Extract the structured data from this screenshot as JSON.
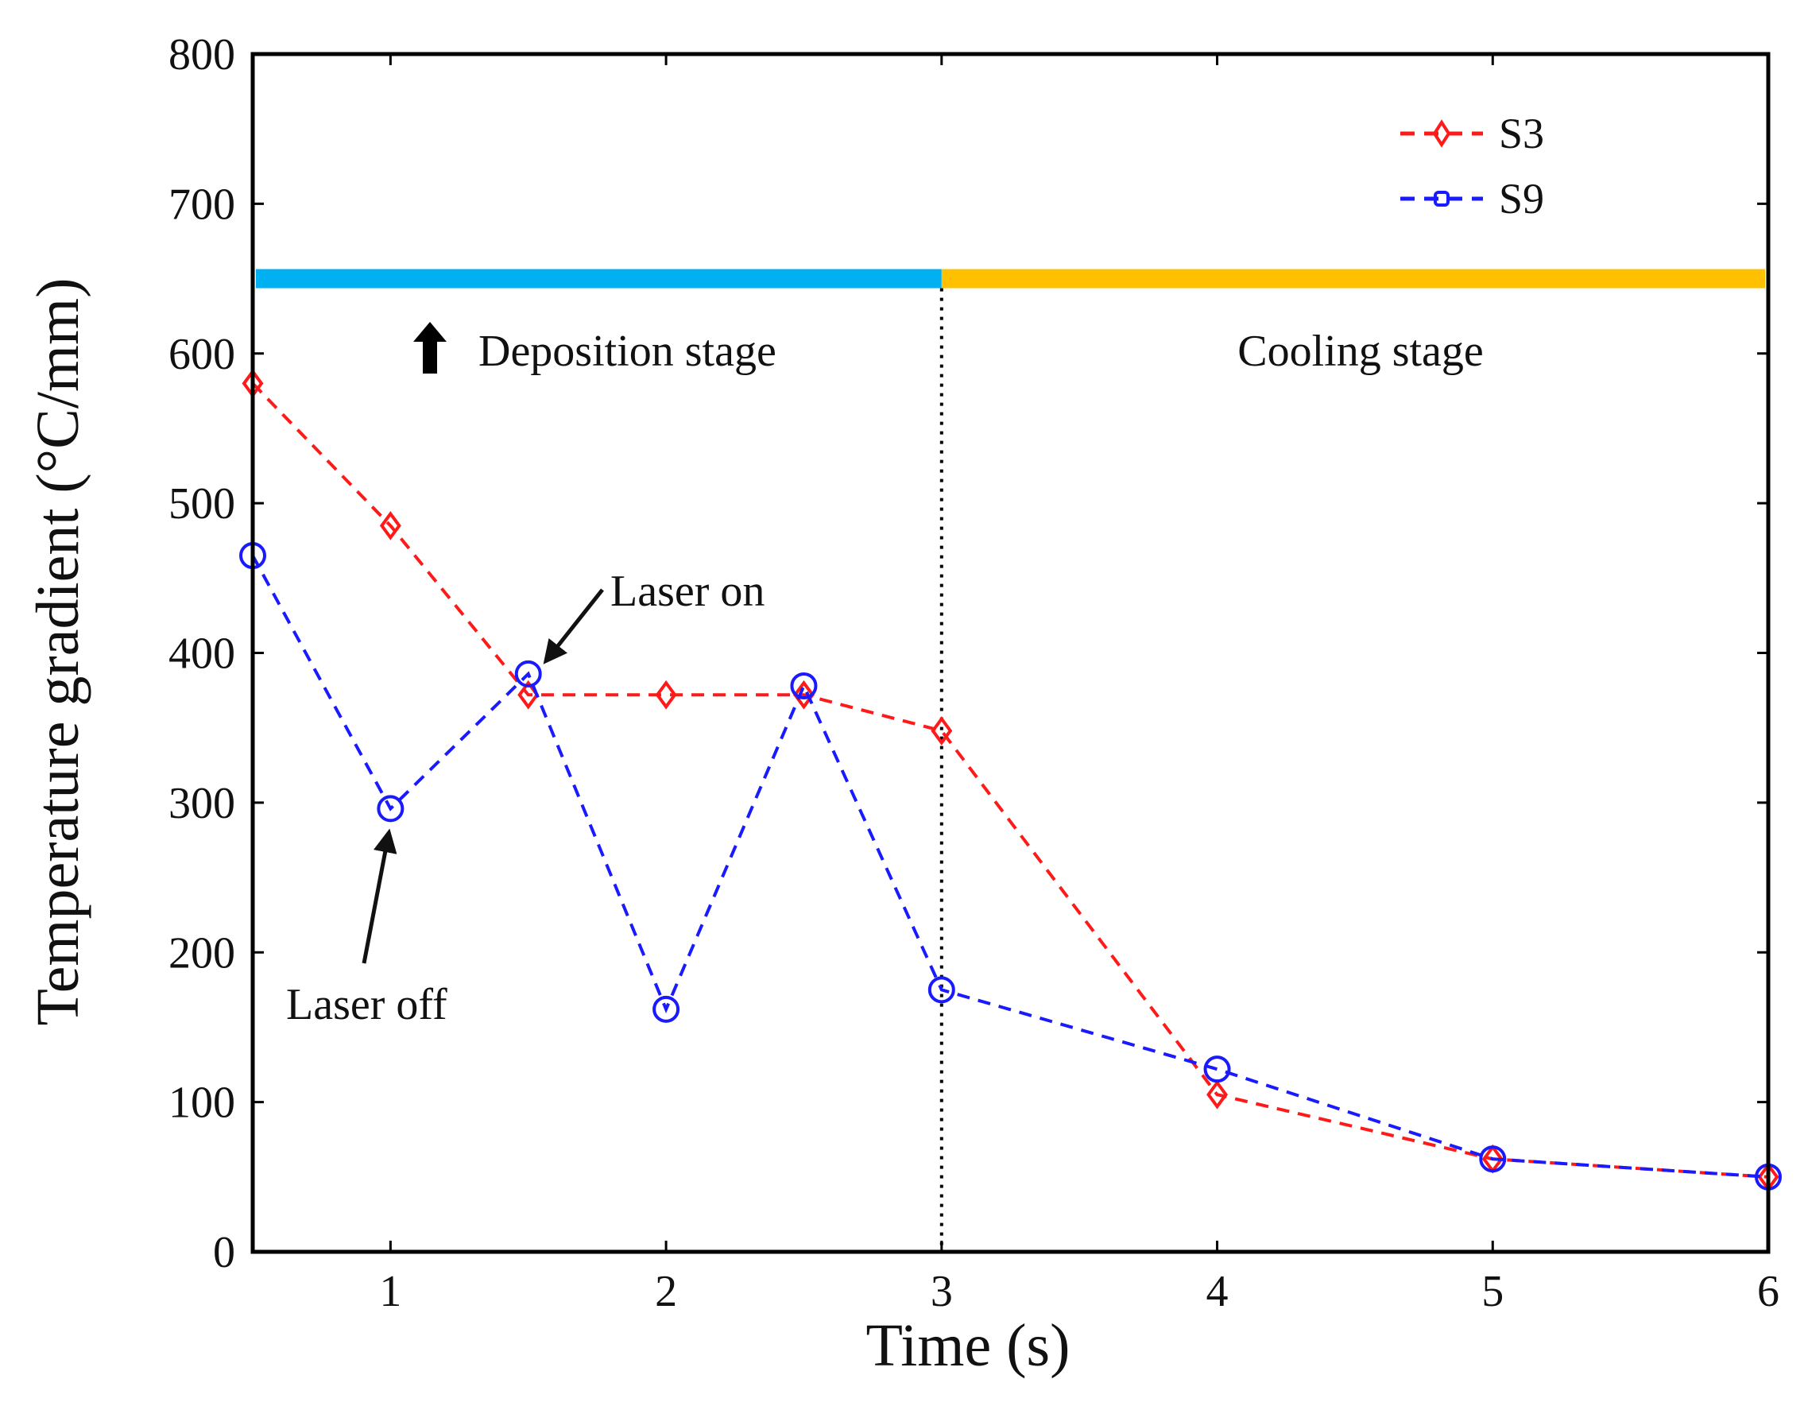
{
  "chart_data": {
    "type": "line",
    "xlabel": "Time (s)",
    "ylabel": "Temperature gradient (°C/mm)",
    "xlim": [
      0.5,
      6
    ],
    "ylim": [
      0,
      800
    ],
    "xticks": [
      1,
      2,
      3,
      4,
      5,
      6
    ],
    "yticks": [
      0,
      100,
      200,
      300,
      400,
      500,
      600,
      700,
      800
    ],
    "grid": false,
    "legend_position": "top-right",
    "series": [
      {
        "name": "S3",
        "color": "#ff1a1a",
        "marker": "diamond",
        "line_style": "dashed",
        "x": [
          0.5,
          1,
          1.5,
          2,
          2.5,
          3,
          4,
          5,
          6
        ],
        "y": [
          580,
          485,
          372,
          372,
          372,
          348,
          105,
          62,
          50
        ]
      },
      {
        "name": "S9",
        "color": "#1a1aff",
        "marker": "circle",
        "line_style": "dashed",
        "x": [
          0.5,
          1,
          1.5,
          2,
          2.5,
          3,
          4,
          5,
          6
        ],
        "y": [
          465,
          296,
          386,
          162,
          378,
          175,
          122,
          62,
          50
        ]
      }
    ],
    "stages": {
      "boundary_x": 3,
      "bar_y": 650,
      "deposition": {
        "label": "Deposition stage",
        "color": "#00b0f0"
      },
      "cooling": {
        "label": "Cooling stage",
        "color": "#ffc000"
      }
    },
    "annotations": [
      {
        "text": "Laser on",
        "target_x": 1.5,
        "target_y": 386
      },
      {
        "text": "Laser off",
        "target_x": 1,
        "target_y": 296
      }
    ]
  }
}
